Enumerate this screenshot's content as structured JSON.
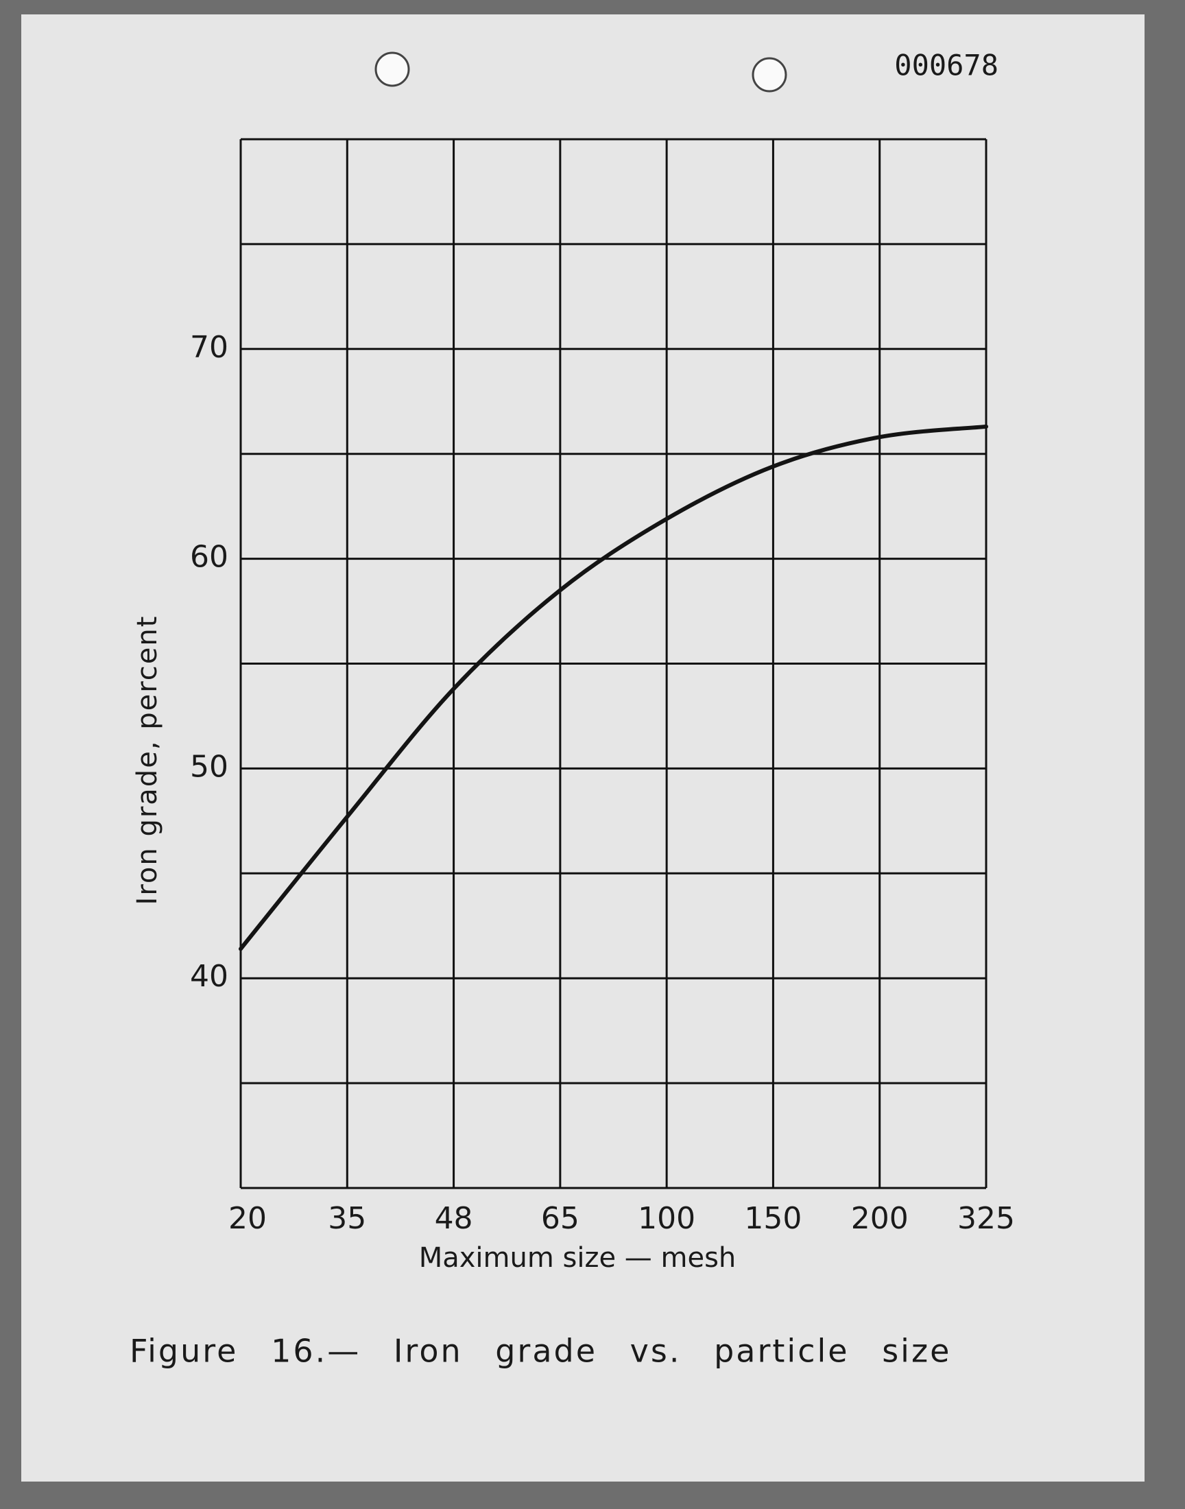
{
  "chart_data": {
    "type": "line",
    "title": "Figure 16.— Iron grade vs. particle size",
    "annotation": "000678",
    "x_label": "Maximum size — mesh",
    "y_label": "Iron grade, percent",
    "categories": [
      "20",
      "35",
      "48",
      "65",
      "100",
      "150",
      "200",
      "325"
    ],
    "values": [
      41.4,
      47.7,
      53.8,
      58.5,
      61.9,
      64.4,
      65.8,
      66.3
    ],
    "color": "#141414",
    "ylim": [
      30,
      80
    ],
    "yticks": [
      40,
      50,
      60,
      70
    ],
    "ygrid": [
      30,
      35,
      40,
      45,
      50,
      55,
      60,
      65,
      70,
      75,
      80
    ],
    "grid": true
  }
}
